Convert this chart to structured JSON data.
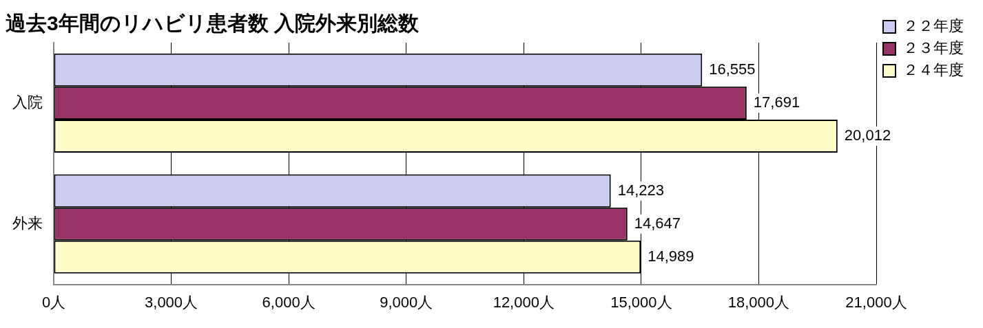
{
  "chart_data": {
    "type": "bar",
    "orientation": "horizontal",
    "title": "過去3年間のリハビリ患者数 入院外来別総数",
    "categories": [
      "入院",
      "外来"
    ],
    "series": [
      {
        "name": "２２年度",
        "color": "#ccccf0",
        "values": [
          16555,
          14223
        ],
        "value_labels": [
          "16,555",
          "14,223"
        ]
      },
      {
        "name": "２３年度",
        "color": "#993366",
        "values": [
          17691,
          14647
        ],
        "value_labels": [
          "17,691",
          "14,647"
        ]
      },
      {
        "name": "２４年度",
        "color": "#ffffcc",
        "values": [
          20012,
          14989
        ],
        "value_labels": [
          "20,012",
          "14,989"
        ]
      }
    ],
    "xlim": [
      0,
      21000
    ],
    "xticks": [
      {
        "value": 0,
        "label": "0人"
      },
      {
        "value": 3000,
        "label": "3,000人"
      },
      {
        "value": 6000,
        "label": "6,000人"
      },
      {
        "value": 9000,
        "label": "9,000人"
      },
      {
        "value": 12000,
        "label": "12,000人"
      },
      {
        "value": 15000,
        "label": "15,000人"
      },
      {
        "value": 18000,
        "label": "18,000人"
      },
      {
        "value": 21000,
        "label": "21,000人"
      }
    ],
    "grid": "x",
    "legend": "right"
  }
}
